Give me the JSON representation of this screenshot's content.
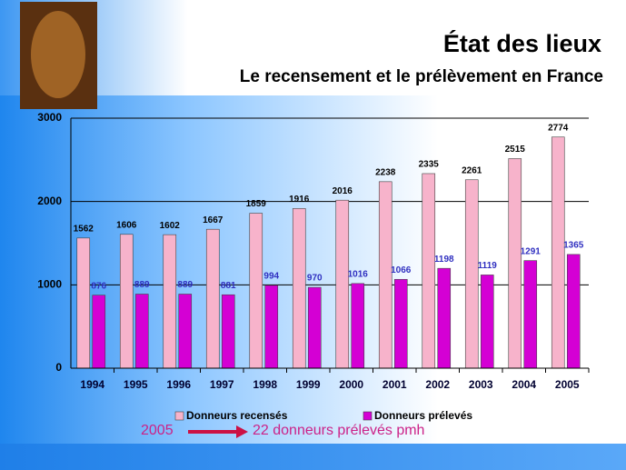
{
  "chart_data": {
    "type": "bar",
    "title": "État des lieux",
    "subtitle": "Le recensement et le prélèvement en France",
    "categories": [
      "1994",
      "1995",
      "1996",
      "1997",
      "1998",
      "1999",
      "2000",
      "2001",
      "2002",
      "2003",
      "2004",
      "2005"
    ],
    "series": [
      {
        "name": "Donneurs recensés",
        "color": "#f7b3cb",
        "values": [
          1562,
          1606,
          1602,
          1667,
          1859,
          1916,
          2016,
          2238,
          2335,
          2261,
          2515,
          2774
        ]
      },
      {
        "name": "Donneurs prélevés",
        "color": "#d400d4",
        "values": [
          876,
          889,
          889,
          881,
          994,
          970,
          1016,
          1066,
          1198,
          1119,
          1291,
          1365
        ]
      }
    ],
    "ylim": [
      0,
      3000
    ],
    "yticks": [
      0,
      1000,
      2000,
      3000
    ],
    "grid": true,
    "annotations": [
      "2005",
      "22 donneurs prélevés pmh"
    ]
  }
}
